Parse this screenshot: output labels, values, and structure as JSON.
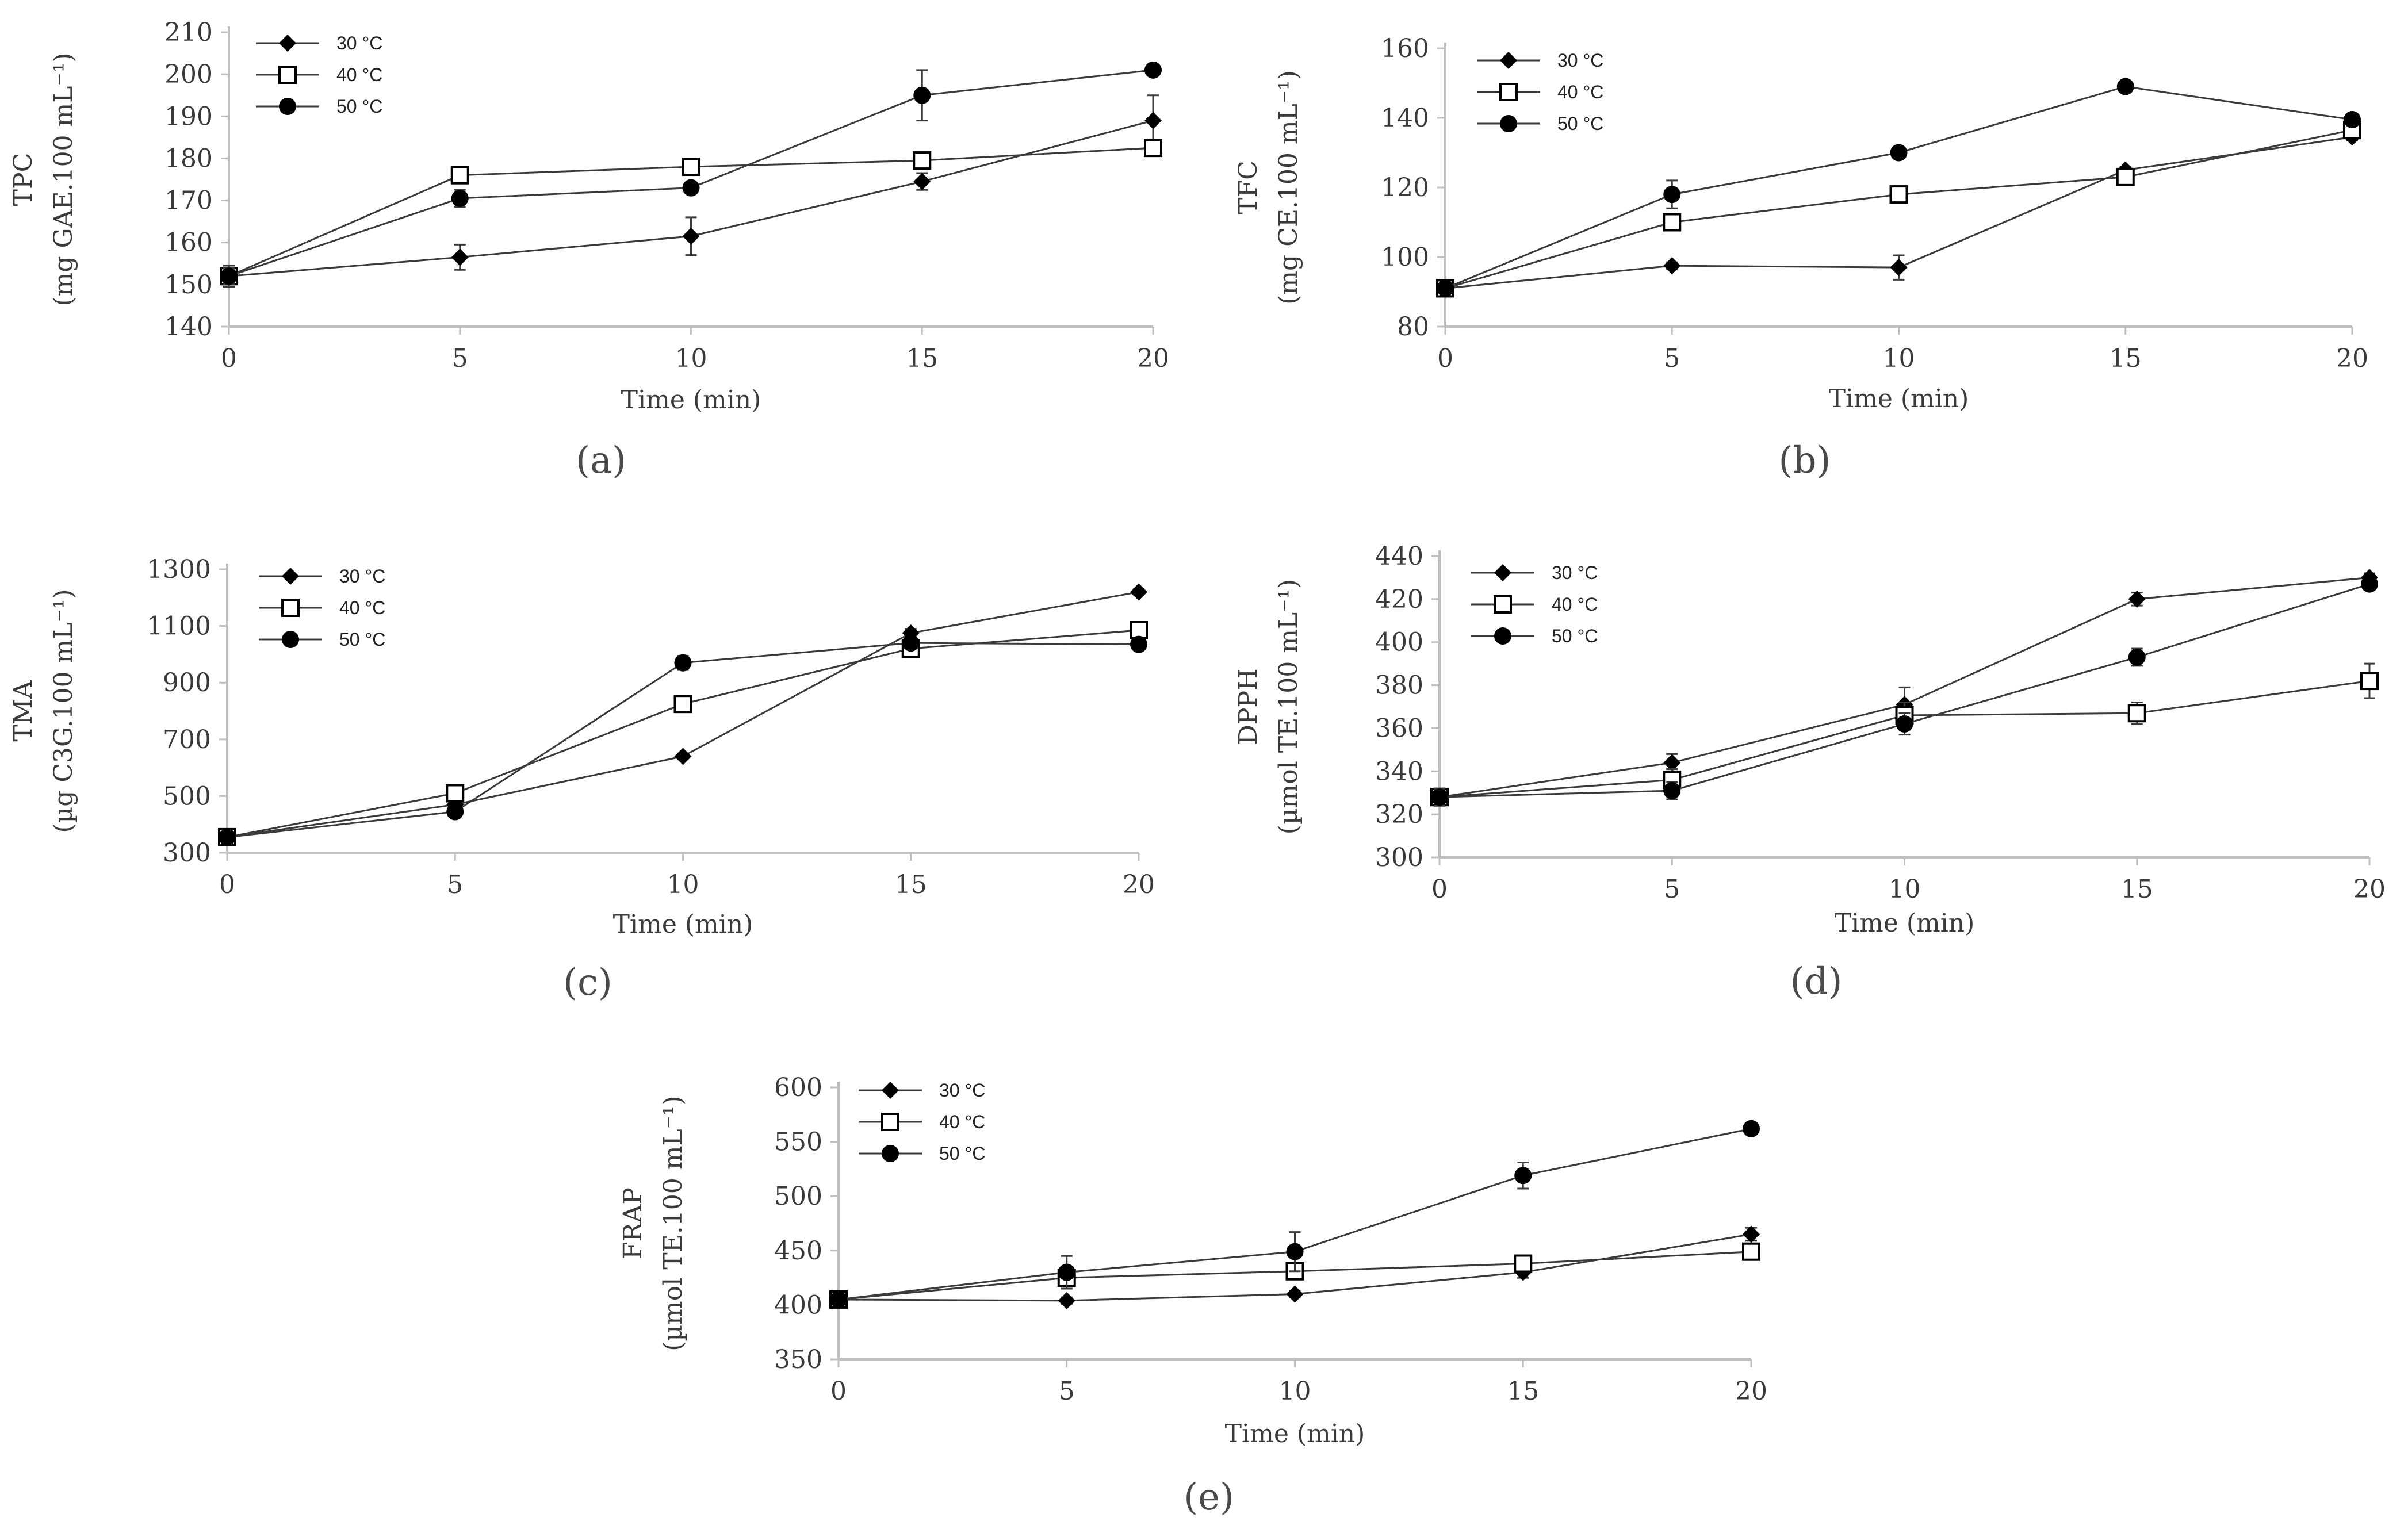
{
  "chart_data": [
    {
      "type": "line",
      "panel_label": "(a)",
      "ylabel_line1": "TPC",
      "ylabel_line2": "(mg GAE.100 mL⁻¹)",
      "xlabel": "Time (min)",
      "x": [
        0,
        5,
        10,
        15,
        20
      ],
      "xticks": [
        "0",
        "5",
        "10",
        "15",
        "20"
      ],
      "ylim": [
        140,
        210
      ],
      "yticks": [
        "140",
        "150",
        "160",
        "170",
        "180",
        "190",
        "200",
        "210"
      ],
      "series": [
        {
          "name": "30 °C",
          "marker": "diamond",
          "values": [
            152,
            156.5,
            161.5,
            174.5,
            189
          ],
          "errors": [
            2.5,
            3,
            4.5,
            2,
            6
          ]
        },
        {
          "name": "40 °C",
          "marker": "square-open",
          "values": [
            152,
            176,
            178,
            179.5,
            182.5
          ],
          "errors": [
            2,
            1.5,
            1.5,
            1.5,
            1.5
          ]
        },
        {
          "name": "50 °C",
          "marker": "circle",
          "values": [
            152,
            170.5,
            173,
            195,
            201
          ],
          "errors": [
            2,
            2,
            1,
            6,
            1
          ]
        }
      ]
    },
    {
      "type": "line",
      "panel_label": "(b)",
      "ylabel_line1": "TFC",
      "ylabel_line2": "(mg CE.100 mL⁻¹)",
      "xlabel": "Time (min)",
      "x": [
        0,
        5,
        10,
        15,
        20
      ],
      "xticks": [
        "0",
        "5",
        "10",
        "15",
        "20"
      ],
      "ylim": [
        80,
        160
      ],
      "yticks": [
        "80",
        "100",
        "120",
        "140",
        "160"
      ],
      "series": [
        {
          "name": "30 °C",
          "marker": "diamond",
          "values": [
            91,
            97.5,
            97,
            125,
            134.5
          ],
          "errors": [
            1.5,
            1,
            3.5,
            1,
            1
          ]
        },
        {
          "name": "40 °C",
          "marker": "square-open",
          "values": [
            91,
            110,
            118,
            123,
            136.5
          ],
          "errors": [
            1.5,
            2,
            1,
            1.5,
            1
          ]
        },
        {
          "name": "50 °C",
          "marker": "circle",
          "values": [
            91,
            118,
            130,
            149,
            139.5
          ],
          "errors": [
            1.5,
            4,
            1,
            1,
            1
          ]
        }
      ]
    },
    {
      "type": "line",
      "panel_label": "(c)",
      "ylabel_line1": "TMA",
      "ylabel_line2": "(µg C3G.100 mL⁻¹)",
      "xlabel": "Time (min)",
      "x": [
        0,
        5,
        10,
        15,
        20
      ],
      "xticks": [
        "0",
        "5",
        "10",
        "15",
        "20"
      ],
      "ylim": [
        300,
        1300
      ],
      "yticks": [
        "300",
        "500",
        "700",
        "900",
        "1100",
        "1300"
      ],
      "series": [
        {
          "name": "30 °C",
          "marker": "diamond",
          "values": [
            355,
            470,
            640,
            1075,
            1220
          ],
          "errors": [
            10,
            10,
            10,
            15,
            10
          ]
        },
        {
          "name": "40 °C",
          "marker": "square-open",
          "values": [
            355,
            510,
            825,
            1020,
            1085
          ],
          "errors": [
            10,
            10,
            15,
            30,
            15
          ]
        },
        {
          "name": "50 °C",
          "marker": "circle",
          "values": [
            355,
            445,
            970,
            1040,
            1035
          ],
          "errors": [
            10,
            10,
            25,
            15,
            10
          ]
        }
      ]
    },
    {
      "type": "line",
      "panel_label": "(d)",
      "ylabel_line1": "DPPH",
      "ylabel_line2": "(µmol TE.100 mL⁻¹)",
      "xlabel": "Time (min)",
      "x": [
        0,
        5,
        10,
        15,
        20
      ],
      "xticks": [
        "0",
        "5",
        "10",
        "15",
        "20"
      ],
      "ylim": [
        300,
        440
      ],
      "yticks": [
        "300",
        "320",
        "340",
        "360",
        "380",
        "400",
        "420",
        "440"
      ],
      "series": [
        {
          "name": "30 °C",
          "marker": "diamond",
          "values": [
            328,
            344,
            371,
            420,
            430
          ],
          "errors": [
            4,
            4,
            8,
            3,
            2
          ]
        },
        {
          "name": "40 °C",
          "marker": "square-open",
          "values": [
            328,
            336,
            366,
            367,
            382
          ],
          "errors": [
            4,
            5,
            6,
            5,
            8
          ]
        },
        {
          "name": "50 °C",
          "marker": "circle",
          "values": [
            328,
            331,
            362,
            393,
            427
          ],
          "errors": [
            4,
            4,
            5,
            4,
            2
          ]
        }
      ]
    },
    {
      "type": "line",
      "panel_label": "(e)",
      "ylabel_line1": "FRAP",
      "ylabel_line2": "(µmol TE.100 mL⁻¹)",
      "xlabel": "Time (min)",
      "x": [
        0,
        5,
        10,
        15,
        20
      ],
      "xticks": [
        "0",
        "5",
        "10",
        "15",
        "20"
      ],
      "ylim": [
        350,
        600
      ],
      "yticks": [
        "350",
        "400",
        "450",
        "500",
        "550",
        "600"
      ],
      "series": [
        {
          "name": "30 °C",
          "marker": "diamond",
          "values": [
            405,
            404,
            410,
            430,
            465
          ],
          "errors": [
            3,
            3,
            3,
            5,
            6
          ]
        },
        {
          "name": "40 °C",
          "marker": "square-open",
          "values": [
            405,
            425,
            431,
            438,
            449
          ],
          "errors": [
            3,
            8,
            5,
            5,
            4
          ]
        },
        {
          "name": "50 °C",
          "marker": "circle",
          "values": [
            405,
            430,
            449,
            519,
            562
          ],
          "errors": [
            3,
            15,
            18,
            12,
            3
          ]
        }
      ]
    }
  ]
}
